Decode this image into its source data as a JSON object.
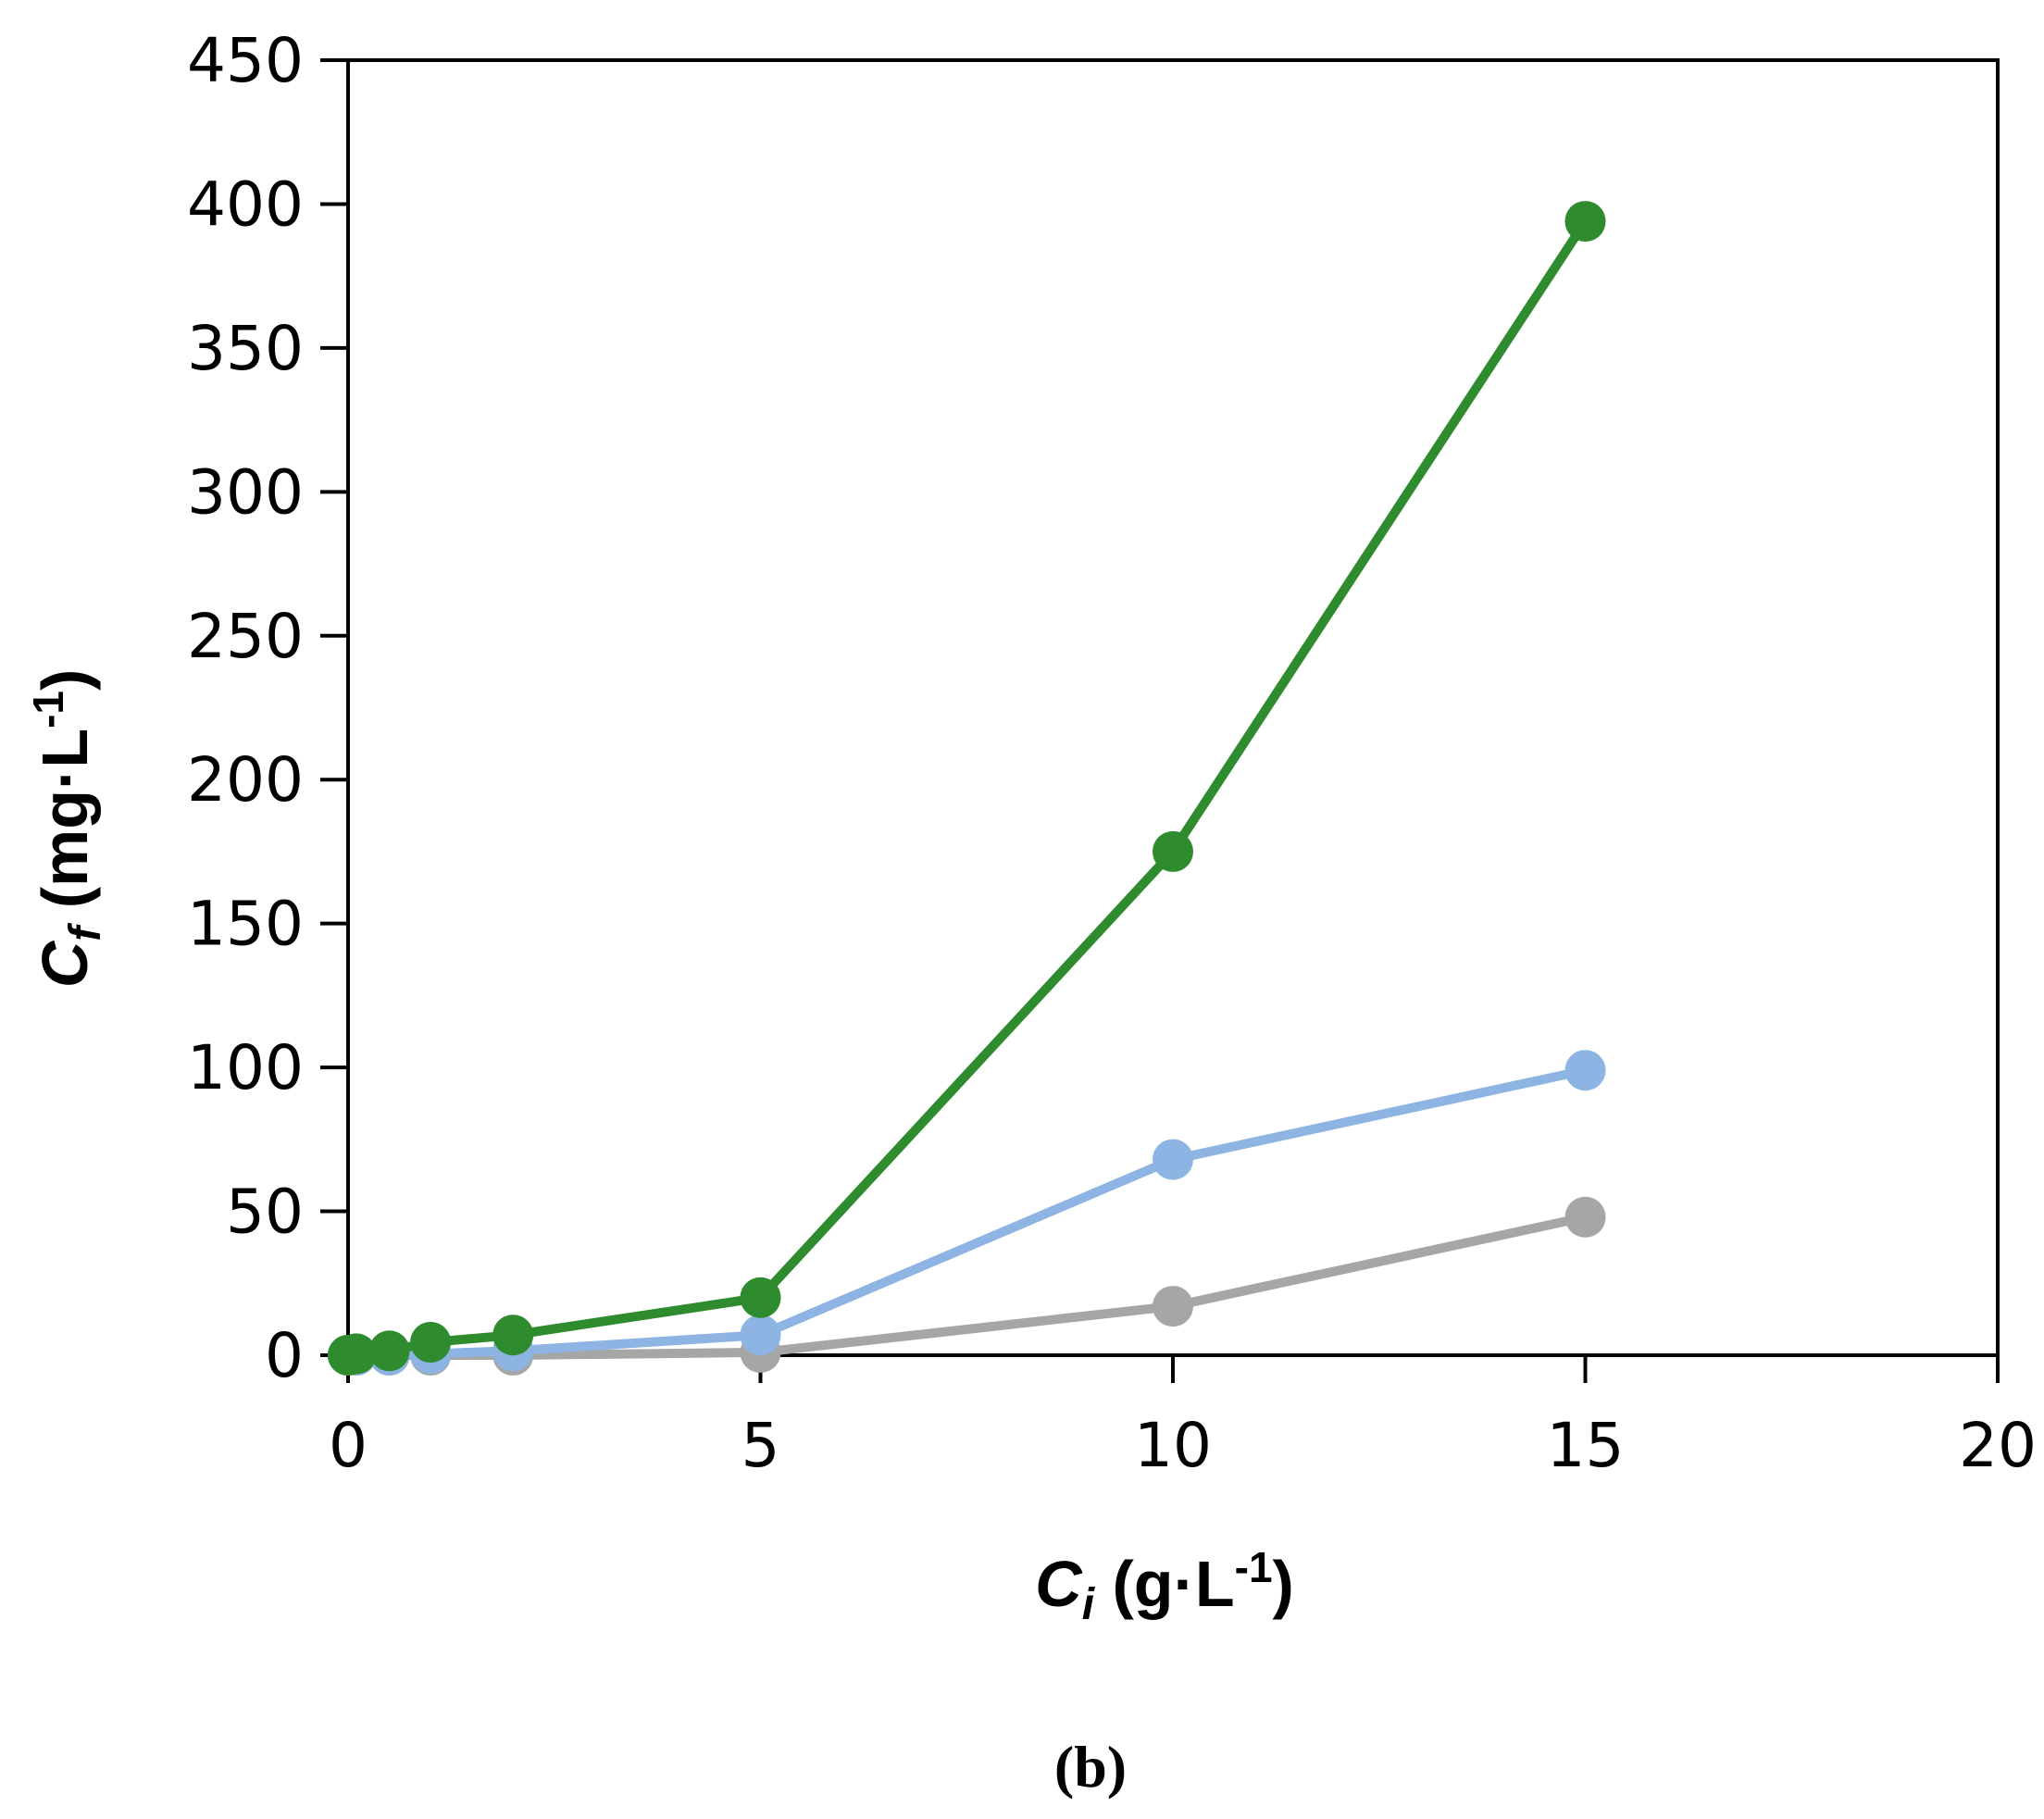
{
  "chart_data": {
    "type": "line",
    "panel_label": "(b)",
    "xlabel": {
      "main": "C",
      "sub": "i",
      "unit_pre": " (g·L",
      "unit_sup": "-1",
      "unit_post": ")"
    },
    "ylabel": {
      "main": "C",
      "sub": "f",
      "unit_pre": " (mg·L",
      "unit_sup": "-1",
      "unit_post": ")"
    },
    "xlim": [
      0,
      20
    ],
    "ylim": [
      0,
      450
    ],
    "xticks": [
      0,
      5,
      10,
      15,
      20
    ],
    "yticks": [
      0,
      50,
      100,
      150,
      200,
      250,
      300,
      350,
      400,
      450
    ],
    "grid": false,
    "legend": "none",
    "series": [
      {
        "color": "#2e8b2e",
        "x": [
          0,
          0.1,
          0.5,
          1,
          2,
          5,
          10,
          15
        ],
        "y": [
          0,
          0.5,
          1.5,
          4.5,
          7,
          20,
          175,
          394
        ]
      },
      {
        "color": "#8db4e2",
        "x": [
          0,
          0.1,
          0.5,
          1,
          2,
          5,
          10,
          15
        ],
        "y": [
          0,
          0,
          0,
          0.5,
          1.5,
          7,
          68,
          99
        ]
      },
      {
        "color": "#a6a6a6",
        "x": [
          0,
          0.1,
          0.5,
          1,
          2,
          5,
          10,
          15
        ],
        "y": [
          0,
          0,
          0,
          0,
          0,
          1,
          17,
          48
        ]
      }
    ]
  }
}
